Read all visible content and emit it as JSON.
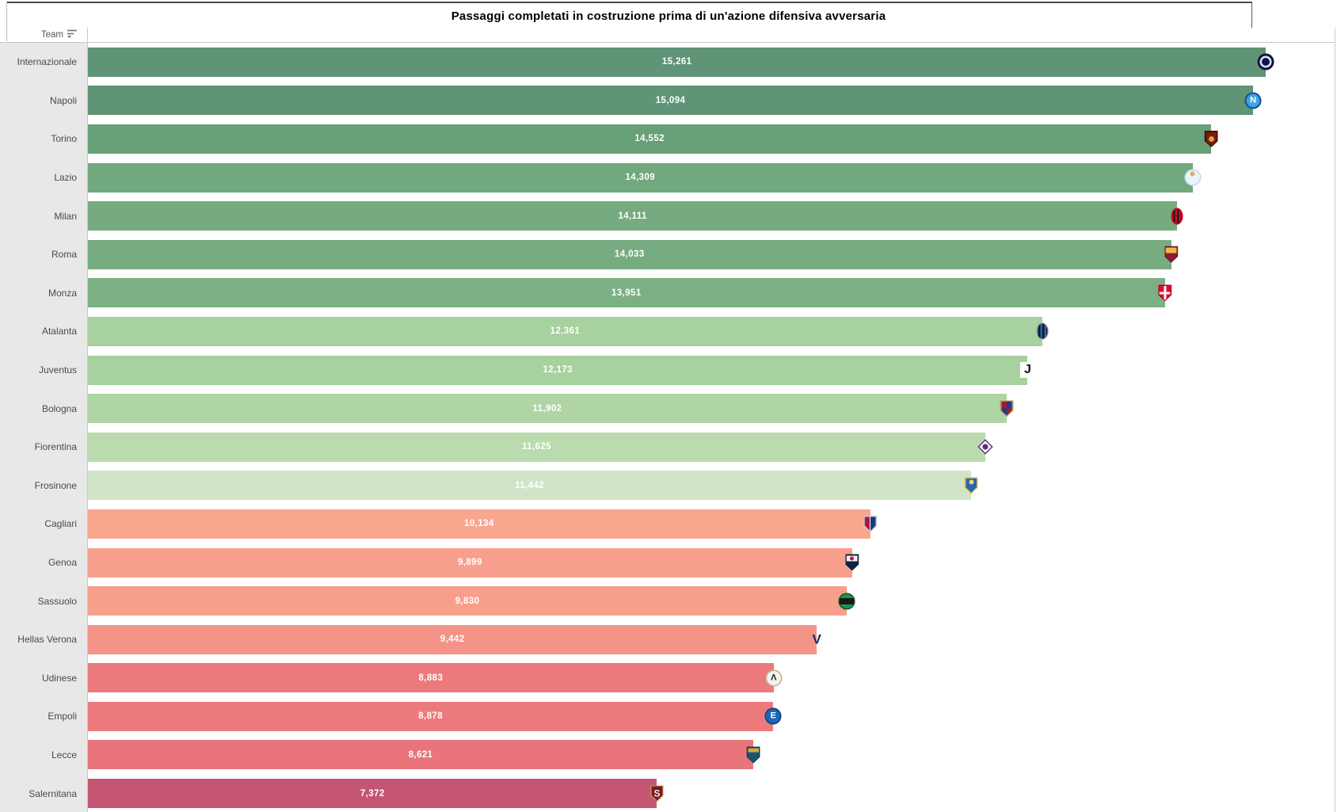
{
  "title": "Passaggi completati in costruzione prima di un'azione difensiva avversaria",
  "header": {
    "team_column_label": "Team",
    "sort_icon": "sort-descending-icon"
  },
  "colors": {
    "label_column_bg": "#e8e8e8",
    "grid_line": "#c9c9c9",
    "value_label_text": "#ffffff",
    "team_label_text": "#4a4a4a"
  },
  "chart_data": {
    "type": "bar",
    "orientation": "horizontal",
    "x_axis_max": 16150,
    "value_labels_shown": true,
    "legend": "none",
    "teams": [
      {
        "name": "Internazionale",
        "value": 15261,
        "value_label": "15,261",
        "bar_color": "#5f9576",
        "logo": {
          "icon": "internazionale-crest-icon",
          "shape": "circle",
          "colors": [
            "#0d1444"
          ],
          "rings": [
            [
              "#0d1444",
              3
            ],
            [
              "#dde4f4",
              2.5
            ]
          ]
        }
      },
      {
        "name": "Napoli",
        "value": 15094,
        "value_label": "15,094",
        "bar_color": "#5f9576",
        "logo": {
          "icon": "napoli-crest-icon",
          "shape": "circle",
          "colors": [
            "#3da2e0"
          ],
          "rings": [
            [
              "#174f8c",
              2
            ]
          ],
          "text": "N",
          "text_color": "#ffffff",
          "text_size": 11,
          "text_weight": 700
        }
      },
      {
        "name": "Torino",
        "value": 14552,
        "value_label": "14,552",
        "bar_color": "#68a078",
        "logo": {
          "icon": "torino-crest-icon",
          "shape": "shield",
          "border": "#3a0d08",
          "colors": [
            "#7a1a0e"
          ],
          "dot_color": "#d9a43a",
          "dot_pos": "center",
          "dot_size": 7
        }
      },
      {
        "name": "Lazio",
        "value": 14309,
        "value_label": "14,309",
        "bar_color": "#71a87d",
        "logo": {
          "icon": "lazio-crest-icon",
          "shape": "circle",
          "colors": [
            "#e9f3fb"
          ],
          "rings": [
            [
              "#c4d9ec",
              1.5
            ]
          ],
          "dot_color": "#d9b45a",
          "dot_pos": "top",
          "dot_size": 6
        }
      },
      {
        "name": "Milan",
        "value": 14111,
        "value_label": "14,111",
        "bar_color": "#76ab80",
        "logo": {
          "icon": "milan-crest-icon",
          "shape": "oval",
          "pattern": "vstripes",
          "colors": [
            "#cf0a2c",
            "#1a1a1a"
          ],
          "rings": [
            [
              "#cf0a2c",
              1.5
            ]
          ]
        }
      },
      {
        "name": "Roma",
        "value": 14033,
        "value_label": "14,033",
        "bar_color": "#77ac81",
        "logo": {
          "icon": "roma-crest-icon",
          "shape": "shield",
          "border": "#6e1322",
          "pattern": "split-h",
          "split": 38,
          "colors": [
            "#f2b844",
            "#8c1c33"
          ]
        }
      },
      {
        "name": "Monza",
        "value": 13951,
        "value_label": "13,951",
        "bar_color": "#7bb083",
        "logo": {
          "icon": "monza-crest-icon",
          "shape": "shield",
          "border": "#b80224",
          "pattern": "cross",
          "colors": [
            "#e6032e",
            "#ffffff"
          ]
        }
      },
      {
        "name": "Atalanta",
        "value": 12361,
        "value_label": "12,361",
        "bar_color": "#a7d19e",
        "logo": {
          "icon": "atalanta-crest-icon",
          "shape": "oval",
          "pattern": "vstripes",
          "colors": [
            "#2a63b0",
            "#17171c"
          ],
          "rings": [
            [
              "#9aa6b8",
              1
            ]
          ]
        }
      },
      {
        "name": "Juventus",
        "value": 12173,
        "value_label": "12,173",
        "bar_color": "#a7d19e",
        "logo": {
          "icon": "juventus-crest-icon",
          "shape": "square",
          "colors": [
            "#ffffff"
          ],
          "text": "J",
          "text_color": "#141414",
          "text_size": 16,
          "text_weight": 800
        }
      },
      {
        "name": "Bologna",
        "value": 11902,
        "value_label": "11,902",
        "bar_color": "#afd5a5",
        "logo": {
          "icon": "bologna-crest-icon",
          "shape": "shield",
          "border": "#b49b5a",
          "pattern": "quarters",
          "colors": [
            "#1e3a8c",
            "#9e1b32"
          ]
        }
      },
      {
        "name": "Fiorentina",
        "value": 11625,
        "value_label": "11,625",
        "bar_color": "#b9dbae",
        "logo": {
          "icon": "fiorentina-crest-icon",
          "shape": "diamond",
          "colors": [
            "#f5f3f7"
          ],
          "border": "#5a2d81",
          "dot_color": "#5a2d81",
          "dot_pos": "center",
          "dot_size": 7
        }
      },
      {
        "name": "Frosinone",
        "value": 11442,
        "value_label": "11,442",
        "bar_color": "#d2e4c7",
        "logo": {
          "icon": "frosinone-crest-icon",
          "shape": "shield",
          "border": "#e8c02a",
          "colors": [
            "#2a65b5"
          ],
          "dot_color": "#f0d65c",
          "dot_pos": "top",
          "dot_size": 6
        }
      },
      {
        "name": "Cagliari",
        "value": 10134,
        "value_label": "10,134",
        "bar_color": "#f9a68f",
        "logo": {
          "icon": "cagliari-crest-icon",
          "shape": "shield",
          "border": "#c8cdd6",
          "pattern": "splitv",
          "colors": [
            "#b01735",
            "#1a3a7d"
          ]
        }
      },
      {
        "name": "Genoa",
        "value": 9899,
        "value_label": "9,899",
        "bar_color": "#f8a08d",
        "logo": {
          "icon": "genoa-crest-icon",
          "shape": "shield",
          "border": "#0d2442",
          "pattern": "split-h",
          "split": 40,
          "colors": [
            "#f3f4f6",
            "#0d2442"
          ],
          "dot_color": "#c8102e",
          "dot_pos": "top",
          "dot_size": 5
        }
      },
      {
        "name": "Sassuolo",
        "value": 9830,
        "value_label": "9,830",
        "bar_color": "#f89f8c",
        "logo": {
          "icon": "sassuolo-crest-icon",
          "shape": "circle",
          "pattern": "hband",
          "colors": [
            "#159a4b",
            "#15171a"
          ],
          "rings": [
            [
              "#0b572b",
              1.5
            ]
          ]
        }
      },
      {
        "name": "Hellas Verona",
        "value": 9442,
        "value_label": "9,442",
        "bar_color": "#f59389",
        "logo": {
          "icon": "hellas-verona-crest-icon",
          "shape": "plain",
          "colors": [],
          "text": "V",
          "text_color": "#142a66",
          "text_size": 17,
          "text_weight": 800
        }
      },
      {
        "name": "Udinese",
        "value": 8883,
        "value_label": "8,883",
        "bar_color": "#ec7a7d",
        "logo": {
          "icon": "udinese-crest-icon",
          "shape": "circle",
          "colors": [
            "#f4f2ee"
          ],
          "rings": [
            [
              "#b9ab8e",
              1.5
            ]
          ],
          "text": "Λ",
          "text_color": "#1a1a1a",
          "text_size": 11,
          "text_weight": 700
        }
      },
      {
        "name": "Empoli",
        "value": 8878,
        "value_label": "8,878",
        "bar_color": "#ec7a7d",
        "logo": {
          "icon": "empoli-crest-icon",
          "shape": "circle",
          "colors": [
            "#1a67b3"
          ],
          "rings": [
            [
              "#0c3f7a",
              1.5
            ]
          ],
          "text": "E",
          "text_color": "#ffffff",
          "text_size": 11,
          "text_weight": 700
        }
      },
      {
        "name": "Lecce",
        "value": 8621,
        "value_label": "8,621",
        "bar_color": "#ea747c",
        "logo": {
          "icon": "lecce-crest-icon",
          "shape": "shield",
          "border": "#0e3f57",
          "pattern": "split-h",
          "split": 30,
          "colors": [
            "#d4aa3c",
            "#1a5674"
          ]
        }
      },
      {
        "name": "Salernitana",
        "value": 7372,
        "value_label": "7,372",
        "bar_color": "#c45674",
        "logo": {
          "icon": "salernitana-crest-icon",
          "shape": "shield",
          "border": "#c29b4a",
          "colors": [
            "#7e1528"
          ],
          "text": "S",
          "text_color": "#f5f0e6",
          "text_size": 12,
          "text_weight": 800
        }
      }
    ]
  }
}
